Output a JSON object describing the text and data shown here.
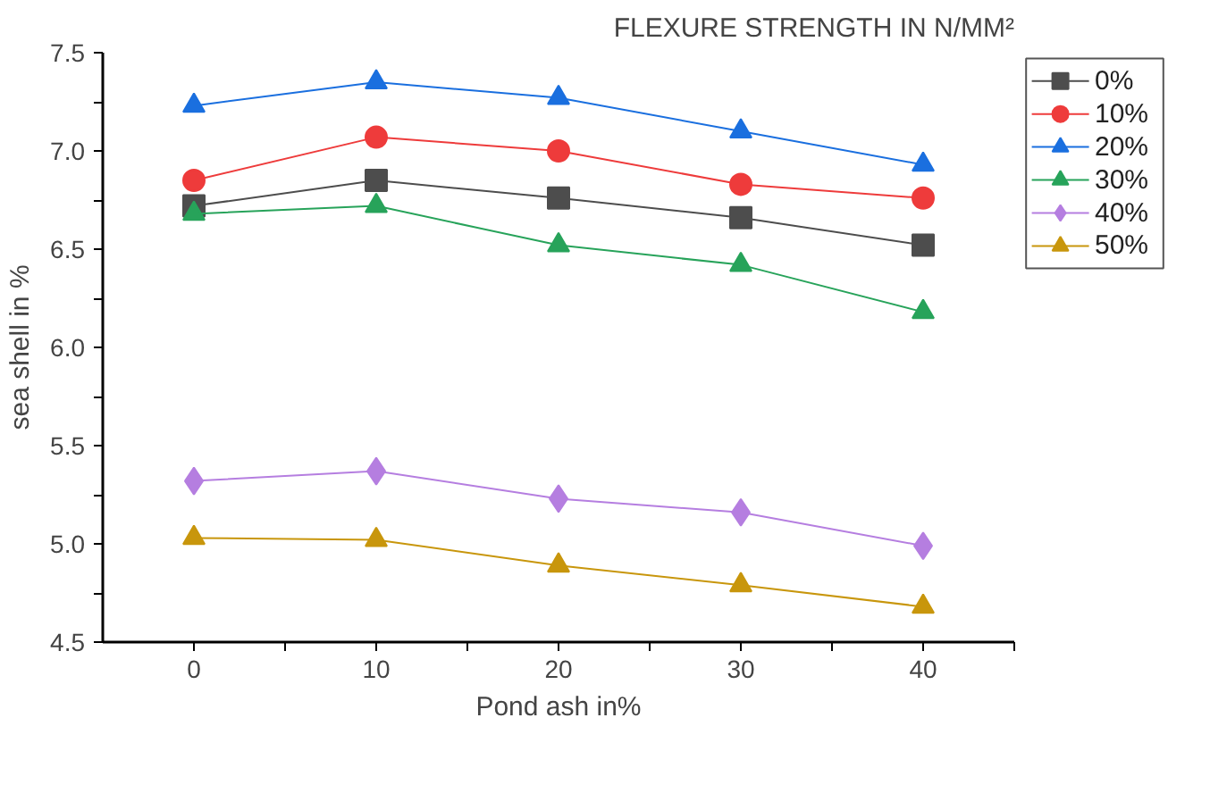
{
  "chart_data": {
    "type": "line",
    "title": "FLEXURE STRENGTH IN N/MM²",
    "xlabel": "Pond ash in%",
    "ylabel": "sea shell in %",
    "x": [
      0,
      10,
      20,
      30,
      40
    ],
    "xlim": [
      -5,
      45
    ],
    "xticks": [
      0,
      {
        "value": 5,
        "label": null
      },
      10,
      {
        "value": 15,
        "label": null
      },
      20,
      {
        "value": 25,
        "label": null
      },
      30,
      {
        "value": 35,
        "label": null
      },
      40,
      {
        "value": 45,
        "label": null
      }
    ],
    "ylim": [
      4.5,
      7.5
    ],
    "yticks": [
      4.5,
      {
        "value": 4.75,
        "label": null
      },
      {
        "value": 5,
        "label": "5.0"
      },
      {
        "value": 5.25,
        "label": null
      },
      5.5,
      {
        "value": 5.75,
        "label": null
      },
      {
        "value": 6,
        "label": "6.0"
      },
      {
        "value": 6.25,
        "label": null
      },
      6.5,
      {
        "value": 6.75,
        "label": null
      },
      {
        "value": 7,
        "label": "7.0"
      },
      {
        "value": 7.25,
        "label": null
      },
      7.5
    ],
    "grid": false,
    "legend": "top right",
    "line_style": "solid",
    "series": [
      {
        "name": "0%",
        "color": "#4d4d4d",
        "marker": "square",
        "values": [
          6.72,
          6.85,
          6.76,
          6.66,
          6.52
        ]
      },
      {
        "name": "10%",
        "color": "#ee3b3b",
        "marker": "circle",
        "values": [
          6.85,
          7.07,
          7.0,
          6.83,
          6.76
        ]
      },
      {
        "name": "20%",
        "color": "#1a6fdf",
        "marker": "triangle",
        "values": [
          7.23,
          7.35,
          7.27,
          7.1,
          6.93
        ]
      },
      {
        "name": "30%",
        "color": "#27a35a",
        "marker": "triangle",
        "values": [
          6.68,
          6.72,
          6.52,
          6.42,
          6.18
        ]
      },
      {
        "name": "40%",
        "color": "#b57ee0",
        "marker": "diamond",
        "values": [
          5.32,
          5.37,
          5.23,
          5.16,
          4.99
        ]
      },
      {
        "name": "50%",
        "color": "#c8960c",
        "marker": "triangle",
        "values": [
          5.03,
          5.02,
          4.89,
          4.79,
          4.68
        ]
      }
    ]
  }
}
